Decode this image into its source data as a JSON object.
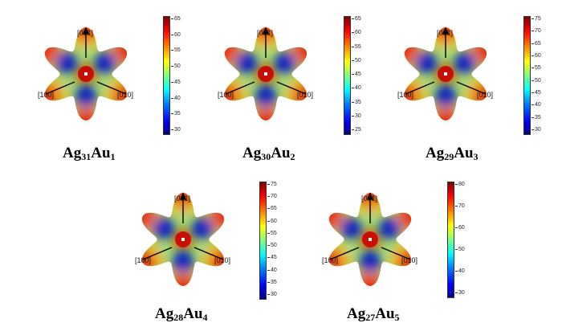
{
  "direction_labels": {
    "top": "[001]",
    "left": "[100]",
    "right": "[010]"
  },
  "panels": [
    {
      "base": "Ag",
      "n1": "31",
      "dopant": "Au",
      "n2": "1",
      "ticks": [
        "65",
        "60",
        "55",
        "50",
        "45",
        "40",
        "35",
        "30"
      ]
    },
    {
      "base": "Ag",
      "n1": "30",
      "dopant": "Au",
      "n2": "2",
      "ticks": [
        "65",
        "60",
        "55",
        "50",
        "45",
        "40",
        "35",
        "30",
        "25"
      ]
    },
    {
      "base": "Ag",
      "n1": "29",
      "dopant": "Au",
      "n2": "3",
      "ticks": [
        "75",
        "70",
        "65",
        "60",
        "55",
        "50",
        "45",
        "40",
        "35",
        "30"
      ]
    },
    {
      "base": "Ag",
      "n1": "28",
      "dopant": "Au",
      "n2": "4",
      "ticks": [
        "75",
        "70",
        "65",
        "60",
        "55",
        "50",
        "45",
        "40",
        "35",
        "30"
      ]
    },
    {
      "base": "Ag",
      "n1": "27",
      "dopant": "Au",
      "n2": "5",
      "ticks": [
        "80",
        "70",
        "60",
        "50",
        "40",
        "30"
      ]
    }
  ],
  "colormap": [
    "#00007f",
    "#0000ff",
    "#0080ff",
    "#00ffff",
    "#80ff80",
    "#ffff00",
    "#ff8000",
    "#ff0000",
    "#7f0000"
  ]
}
